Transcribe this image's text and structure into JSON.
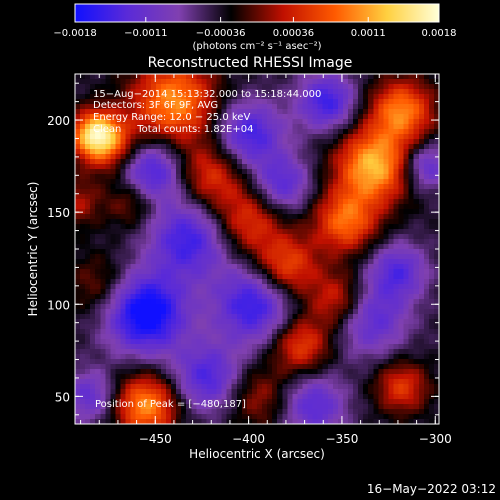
{
  "chart_data": {
    "type": "heatmap",
    "title": "Reconstructed RHESSI Image",
    "xlabel": "Heliocentric X (arcsec)",
    "ylabel": "Heliocentric Y (arcsec)",
    "xlim": [
      -493,
      -298
    ],
    "ylim": [
      35,
      225
    ],
    "x_ticks": [
      {
        "value": -450,
        "label": "−450"
      },
      {
        "value": -400,
        "label": "−400"
      },
      {
        "value": -350,
        "label": "−350"
      },
      {
        "value": -300,
        "label": "−300"
      }
    ],
    "y_ticks": [
      {
        "value": 50,
        "label": "50"
      },
      {
        "value": 100,
        "label": "100"
      },
      {
        "value": 150,
        "label": "150"
      },
      {
        "value": 200,
        "label": "200"
      }
    ],
    "colorbar": {
      "range": [
        -0.0018,
        0.0018
      ],
      "ticks": [
        {
          "value": -0.0018,
          "label": "−0.0018"
        },
        {
          "value": -0.0011,
          "label": "−0.0011"
        },
        {
          "value": -0.00036,
          "label": "−0.00036"
        },
        {
          "value": 0.00036,
          "label": "0.00036"
        },
        {
          "value": 0.0011,
          "label": "0.0011"
        },
        {
          "value": 0.0018,
          "label": "0.0018"
        }
      ],
      "unit_label": "(photons cm⁻² s⁻¹ asec⁻²)",
      "colors": [
        "#1010ff",
        "#5a2ad8",
        "#8040b0",
        "#000000",
        "#c01000",
        "#ff5a00",
        "#ffd040",
        "#ffffd8"
      ]
    },
    "annotations": [
      "15−Aug−2014 15:13:32.000 to 15:18:44.000",
      "Detectors: 3F 6F 9F, AVG",
      "Energy Range: 12.0 − 25.0 keV",
      "Clean     Total counts: 1.82E+04"
    ],
    "peak_label": "Position of Peak = [−480,187]",
    "peak_position": [
      -480,
      187
    ],
    "blobs": [
      {
        "x": -482,
        "y": 192,
        "v": 0.0018,
        "s": 9
      },
      {
        "x": -470,
        "y": 183,
        "v": 0.0009,
        "s": 12
      },
      {
        "x": -440,
        "y": 210,
        "v": 0.0014,
        "s": 16
      },
      {
        "x": -462,
        "y": 157,
        "v": 0.0008,
        "s": 10
      },
      {
        "x": -420,
        "y": 170,
        "v": 0.0009,
        "s": 13
      },
      {
        "x": -400,
        "y": 145,
        "v": 0.0009,
        "s": 13
      },
      {
        "x": -380,
        "y": 120,
        "v": 0.0011,
        "s": 12
      },
      {
        "x": -352,
        "y": 102,
        "v": 0.0009,
        "s": 11
      },
      {
        "x": -333,
        "y": 175,
        "v": 0.0016,
        "s": 14
      },
      {
        "x": -318,
        "y": 205,
        "v": 0.0013,
        "s": 12
      },
      {
        "x": -348,
        "y": 145,
        "v": 0.0012,
        "s": 12
      },
      {
        "x": -372,
        "y": 78,
        "v": 0.001,
        "s": 11
      },
      {
        "x": -455,
        "y": 45,
        "v": 0.0014,
        "s": 12
      },
      {
        "x": -318,
        "y": 55,
        "v": 0.0009,
        "s": 10
      },
      {
        "x": -492,
        "y": 155,
        "v": 0.0006,
        "s": 9
      },
      {
        "x": -480,
        "y": 110,
        "v": 0.0005,
        "s": 12
      },
      {
        "x": -395,
        "y": 50,
        "v": 0.0006,
        "s": 12
      },
      {
        "x": -455,
        "y": 172,
        "v": -0.0014,
        "s": 13
      },
      {
        "x": -432,
        "y": 135,
        "v": -0.0011,
        "s": 15
      },
      {
        "x": -400,
        "y": 192,
        "v": -0.0011,
        "s": 13
      },
      {
        "x": -382,
        "y": 165,
        "v": -0.0009,
        "s": 11
      },
      {
        "x": -455,
        "y": 95,
        "v": -0.0016,
        "s": 15
      },
      {
        "x": -397,
        "y": 100,
        "v": -0.0012,
        "s": 15
      },
      {
        "x": -358,
        "y": 210,
        "v": -0.0011,
        "s": 11
      },
      {
        "x": -335,
        "y": 92,
        "v": -0.0009,
        "s": 14
      },
      {
        "x": -320,
        "y": 118,
        "v": -0.0009,
        "s": 11
      },
      {
        "x": -422,
        "y": 60,
        "v": -0.001,
        "s": 13
      },
      {
        "x": -365,
        "y": 45,
        "v": -0.0009,
        "s": 12
      },
      {
        "x": -305,
        "y": 175,
        "v": -0.0009,
        "s": 9
      },
      {
        "x": -485,
        "y": 50,
        "v": -0.0008,
        "s": 10
      }
    ]
  },
  "footer": {
    "timestamp": "16−May−2022 03:12"
  }
}
